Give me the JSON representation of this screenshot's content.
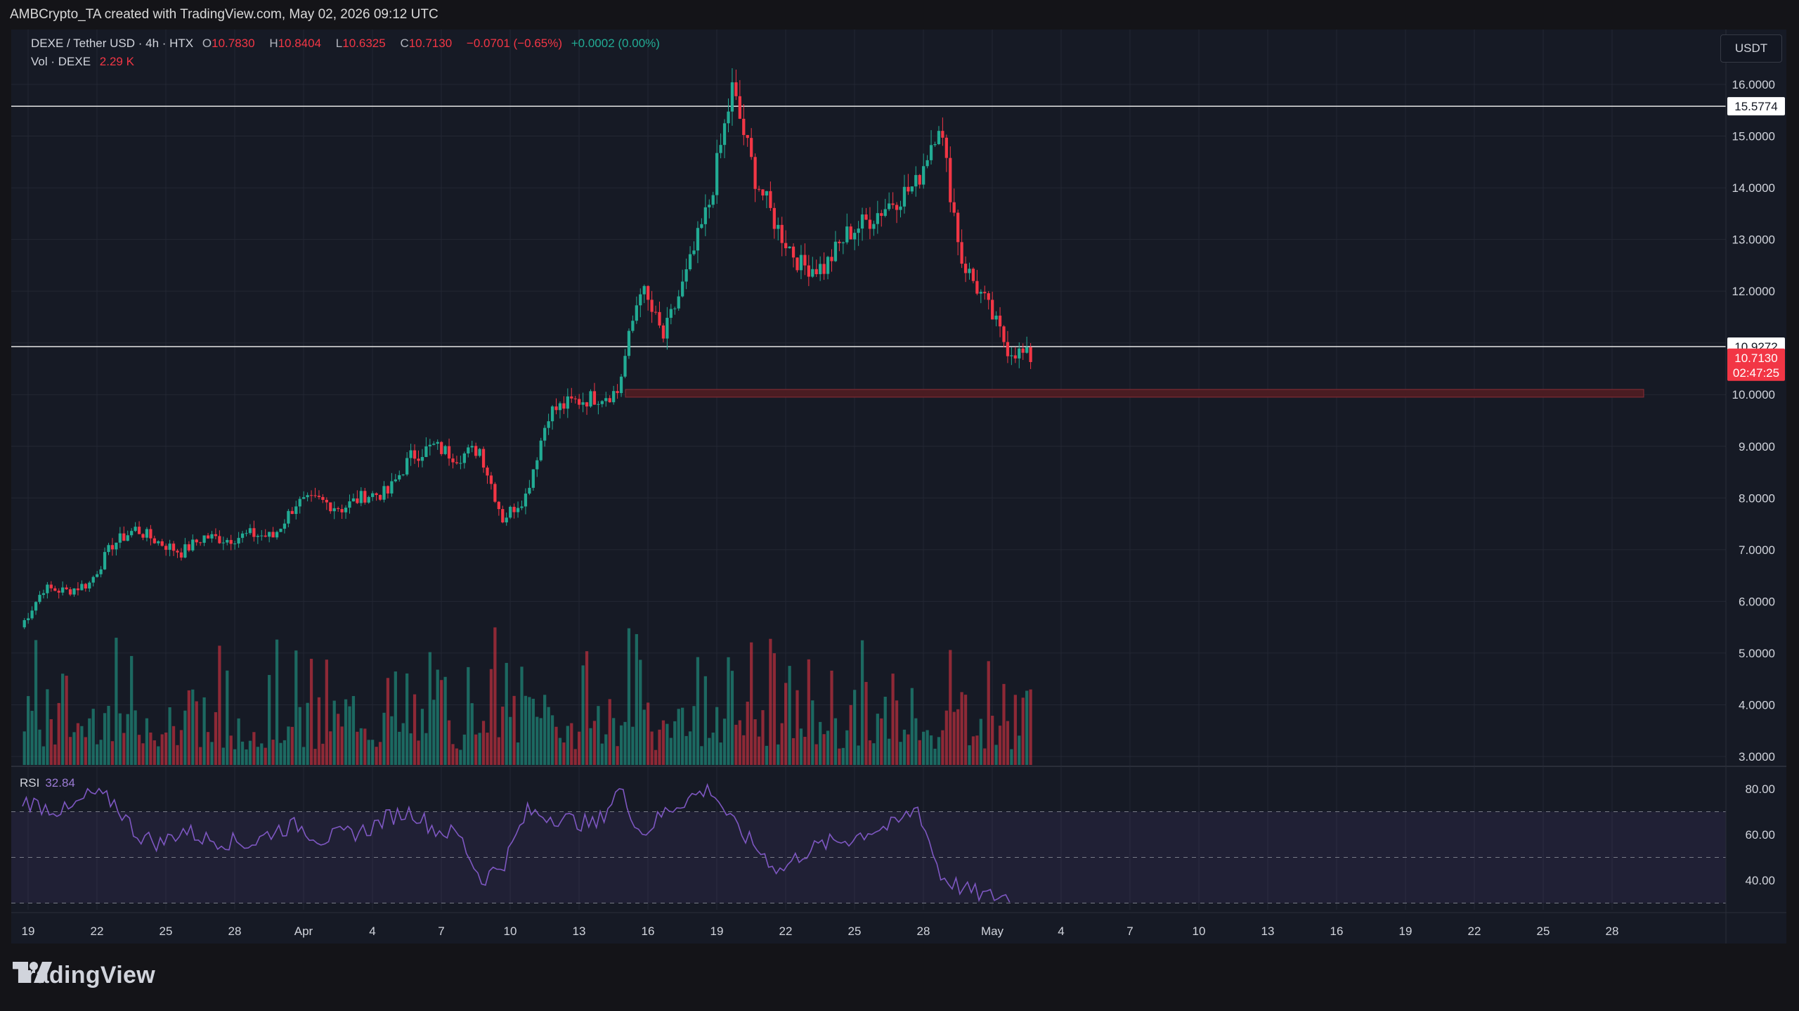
{
  "caption": "AMBCrypto_TA created with TradingView.com, May 02, 2026 09:12 UTC",
  "legend": {
    "symbol": "DEXE / Tether USD · 4h · HTX",
    "o_label": "O",
    "o_value": "10.7830",
    "h_label": "H",
    "h_value": "10.8404",
    "l_label": "L",
    "l_value": "10.6325",
    "c_label": "C",
    "c_value": "10.7130",
    "change": "−0.0701 (−0.65%)",
    "extra": "+0.0002 (0.00%)",
    "vol_label": "Vol · DEXE",
    "vol_value": "2.29 K"
  },
  "currency_button": "USDT",
  "rsi": {
    "label": "RSI",
    "value": "32.84"
  },
  "logo_text": "TradingView",
  "colors": {
    "up": "#22ab94",
    "down": "#f23645",
    "rsi": "#7e57c2",
    "bg": "#161a25"
  },
  "chart_data": {
    "type": "candlestick",
    "ylim": [
      3.0,
      16.5
    ],
    "y_ticks": [
      "16.0000",
      "15.0000",
      "14.0000",
      "13.0000",
      "12.0000",
      "11.0000",
      "10.0000",
      "9.0000",
      "8.0000",
      "7.0000",
      "6.0000",
      "5.0000",
      "4.0000",
      "3.0000"
    ],
    "x_ticks": [
      "19",
      "22",
      "25",
      "28",
      "Apr",
      "4",
      "7",
      "10",
      "13",
      "16",
      "19",
      "22",
      "25",
      "28",
      "May",
      "4",
      "7",
      "10",
      "13",
      "16",
      "19",
      "22",
      "25",
      "28"
    ],
    "price_labels": [
      {
        "label": "15.5774",
        "value": 15.5774,
        "style": "resistance"
      },
      {
        "label": "10.9272",
        "value": 10.9272,
        "style": "support"
      },
      {
        "label": "10.7130",
        "value": 10.713,
        "style": "last",
        "countdown": "02:47:25"
      }
    ],
    "horizontal_lines": [
      15.5774,
      10.9272
    ],
    "demand_zone": {
      "low": 9.95,
      "high": 10.1,
      "from_tick": "15",
      "to_tick": "28"
    },
    "price_path": [
      [
        "19",
        5.5
      ],
      [
        "20",
        6.25
      ],
      [
        "21",
        6.2
      ],
      [
        "22",
        6.35
      ],
      [
        "23",
        7.1
      ],
      [
        "24",
        7.4
      ],
      [
        "25",
        7.15
      ],
      [
        "26",
        6.95
      ],
      [
        "27",
        7.25
      ],
      [
        "28",
        7.2
      ],
      [
        "29",
        7.3
      ],
      [
        "30",
        7.25
      ],
      [
        "31",
        7.9
      ],
      [
        "Apr",
        7.95
      ],
      [
        "2",
        7.8
      ],
      [
        "3",
        8.05
      ],
      [
        "4",
        8.1
      ],
      [
        "5",
        8.8
      ],
      [
        "6",
        9.0
      ],
      [
        "7",
        8.8
      ],
      [
        "8",
        8.95
      ],
      [
        "9",
        7.6
      ],
      [
        "10",
        8.05
      ],
      [
        "11",
        9.65
      ],
      [
        "12",
        9.85
      ],
      [
        "13",
        9.95
      ],
      [
        "14",
        10.05
      ],
      [
        "15",
        12.1
      ],
      [
        "16",
        11.1
      ],
      [
        "17",
        12.3
      ],
      [
        "18",
        13.7
      ],
      [
        "19",
        15.9
      ],
      [
        "20",
        14.2
      ],
      [
        "21",
        13.2
      ],
      [
        "22",
        12.5
      ],
      [
        "23",
        12.45
      ],
      [
        "24",
        13.1
      ],
      [
        "25",
        13.4
      ],
      [
        "26",
        13.75
      ],
      [
        "27",
        14.05
      ],
      [
        "28",
        15.3
      ],
      [
        "29",
        12.6
      ],
      [
        "30",
        11.8
      ],
      [
        "May",
        10.9
      ],
      [
        "2",
        10.713
      ]
    ],
    "volume_ylim": [
      0,
      3.5
    ],
    "rsi": {
      "ylim": [
        25,
        85
      ],
      "ticks": [
        "80.00",
        "60.00",
        "40.00"
      ],
      "band": [
        30,
        70
      ],
      "midline": 50,
      "path": [
        [
          "19",
          75
        ],
        [
          "21",
          72
        ],
        [
          "22",
          70
        ],
        [
          "23",
          78
        ],
        [
          "24",
          74
        ],
        [
          "25",
          60
        ],
        [
          "26",
          56
        ],
        [
          "27",
          62
        ],
        [
          "28",
          58
        ],
        [
          "29",
          57
        ],
        [
          "30",
          56
        ],
        [
          "31",
          62
        ],
        [
          "Apr",
          64
        ],
        [
          "2",
          58
        ],
        [
          "3",
          60
        ],
        [
          "4",
          62
        ],
        [
          "5",
          68
        ],
        [
          "6",
          70
        ],
        [
          "7",
          62
        ],
        [
          "8",
          60
        ],
        [
          "9",
          40
        ],
        [
          "10",
          48
        ],
        [
          "11",
          70
        ],
        [
          "12",
          68
        ],
        [
          "13",
          66
        ],
        [
          "14",
          64
        ],
        [
          "15",
          80
        ],
        [
          "16",
          60
        ],
        [
          "17",
          70
        ],
        [
          "18",
          76
        ],
        [
          "19",
          80
        ],
        [
          "20",
          64
        ],
        [
          "21",
          54
        ],
        [
          "22",
          44
        ],
        [
          "23",
          52
        ],
        [
          "24",
          56
        ],
        [
          "25",
          58
        ],
        [
          "26",
          62
        ],
        [
          "27",
          64
        ],
        [
          "28",
          72
        ],
        [
          "29",
          42
        ],
        [
          "30",
          36
        ],
        [
          "May",
          33
        ],
        [
          "2",
          32.84
        ]
      ]
    }
  }
}
